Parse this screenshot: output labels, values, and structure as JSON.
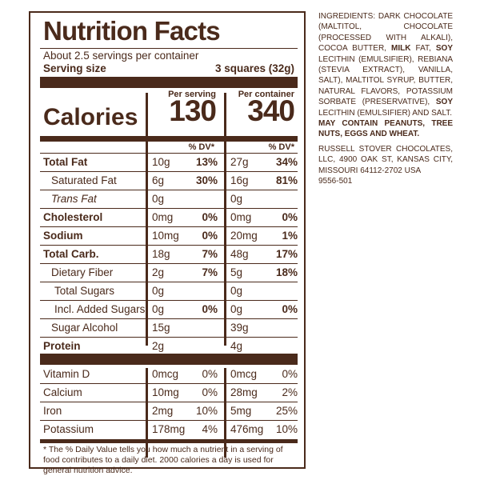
{
  "label": {
    "title": "Nutrition Facts",
    "servings": "About 2.5 servings per container",
    "serving_size_label": "Serving size",
    "serving_size_value": "3 squares (32g)",
    "per_serving_label": "Per serving",
    "per_container_label": "Per container",
    "calories_label": "Calories",
    "calories_serving": "130",
    "calories_container": "340",
    "dv_header": "% DV*",
    "rows": [
      {
        "label": "Total Fat",
        "a1": "10g",
        "p1": "13%",
        "a2": "27g",
        "p2": "34%"
      },
      {
        "label": "Saturated Fat",
        "a1": "6g",
        "p1": "30%",
        "a2": "16g",
        "p2": "81%"
      },
      {
        "label": "Trans Fat",
        "a1": "0g",
        "p1": "",
        "a2": "0g",
        "p2": ""
      },
      {
        "label": "Cholesterol",
        "a1": "0mg",
        "p1": "0%",
        "a2": "0mg",
        "p2": "0%"
      },
      {
        "label": "Sodium",
        "a1": "10mg",
        "p1": "0%",
        "a2": "20mg",
        "p2": "1%"
      },
      {
        "label": "Total Carb.",
        "a1": "18g",
        "p1": "7%",
        "a2": "48g",
        "p2": "17%"
      },
      {
        "label": "Dietary Fiber",
        "a1": "2g",
        "p1": "7%",
        "a2": "5g",
        "p2": "18%"
      },
      {
        "label": "Total Sugars",
        "a1": "0g",
        "p1": "",
        "a2": "0g",
        "p2": ""
      },
      {
        "label": "Incl. Added Sugars",
        "a1": "0g",
        "p1": "0%",
        "a2": "0g",
        "p2": "0%"
      },
      {
        "label": "Sugar Alcohol",
        "a1": "15g",
        "p1": "",
        "a2": "39g",
        "p2": ""
      },
      {
        "label": "Protein",
        "a1": "2g",
        "p1": "",
        "a2": "4g",
        "p2": ""
      }
    ],
    "vitamins": [
      {
        "label": "Vitamin D",
        "a1": "0mcg",
        "p1": "0%",
        "a2": "0mcg",
        "p2": "0%"
      },
      {
        "label": "Calcium",
        "a1": "10mg",
        "p1": "0%",
        "a2": "28mg",
        "p2": "2%"
      },
      {
        "label": "Iron",
        "a1": "2mg",
        "p1": "10%",
        "a2": "5mg",
        "p2": "25%"
      },
      {
        "label": "Potassium",
        "a1": "178mg",
        "p1": "4%",
        "a2": "476mg",
        "p2": "10%"
      }
    ],
    "footnote": "* The % Daily Value tells you how much a nutrient in a serving of food contributes to a daily diet. 2000 calories a day is used for general nutrition advice."
  },
  "ingredients": {
    "prefix": "INGREDIENTS: DARK CHOCOLATE (MALTITOL, CHOCOLATE (PROCESSED WITH ALKALI), COCOA BUTTER, ",
    "milk": "MILK",
    "part2": " FAT, ",
    "soy1": "SOY",
    "part3": " LECITHIN (EMULSIFIER), REBIANA (STEVIA EXTRACT), VANILLA, SALT), MALTITOL SYRUP, BUTTER, NATURAL FLAVORS, POTASSIUM SORBATE (PRESERVATIVE), ",
    "soy2": "SOY",
    "part4": " LECITHIN (EMULSIFIER) AND SALT.",
    "allergen": "MAY CONTAIN PEANUTS, TREE NUTS, EGGS AND WHEAT.",
    "manufacturer": "RUSSELL STOVER CHOCOLATES, LLC, 4900 OAK ST, KANSAS CITY, MISSOURI 64112-2702 USA",
    "code": "9556-501"
  }
}
